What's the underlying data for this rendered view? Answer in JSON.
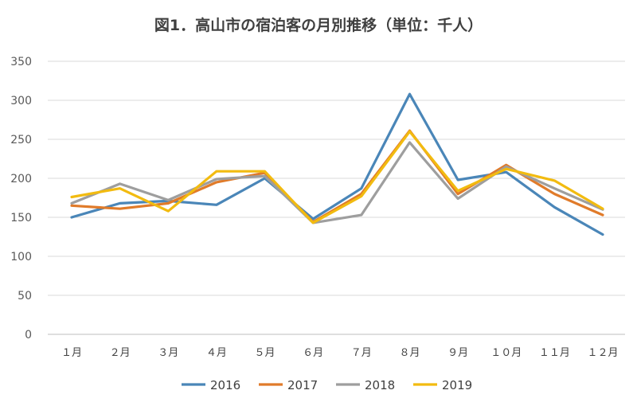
{
  "chart_data": {
    "type": "line",
    "title": "図1．高山市の宿泊客の月別推移（単位：千人）",
    "xlabel": "",
    "ylabel": "",
    "categories": [
      "１月",
      "２月",
      "３月",
      "４月",
      "５月",
      "６月",
      "７月",
      "８月",
      "９月",
      "１０月",
      "１１月",
      "１２月"
    ],
    "ylim": [
      0,
      350
    ],
    "yticks": [
      0,
      50,
      100,
      150,
      200,
      250,
      300,
      350
    ],
    "grid": true,
    "legend": "bottom",
    "series": [
      {
        "name": "2016",
        "color": "#4a86b8",
        "values": [
          150,
          168,
          171,
          166,
          200,
          148,
          187,
          308,
          198,
          208,
          163,
          128
        ]
      },
      {
        "name": "2017",
        "color": "#e07b2a",
        "values": [
          165,
          161,
          168,
          195,
          207,
          144,
          180,
          261,
          180,
          217,
          180,
          153
        ]
      },
      {
        "name": "2018",
        "color": "#9e9e9e",
        "values": [
          168,
          193,
          172,
          199,
          203,
          143,
          153,
          246,
          174,
          215,
          187,
          160
        ]
      },
      {
        "name": "2019",
        "color": "#f2bb10",
        "values": [
          176,
          187,
          158,
          209,
          209,
          143,
          177,
          260,
          184,
          212,
          197,
          161
        ]
      }
    ]
  }
}
